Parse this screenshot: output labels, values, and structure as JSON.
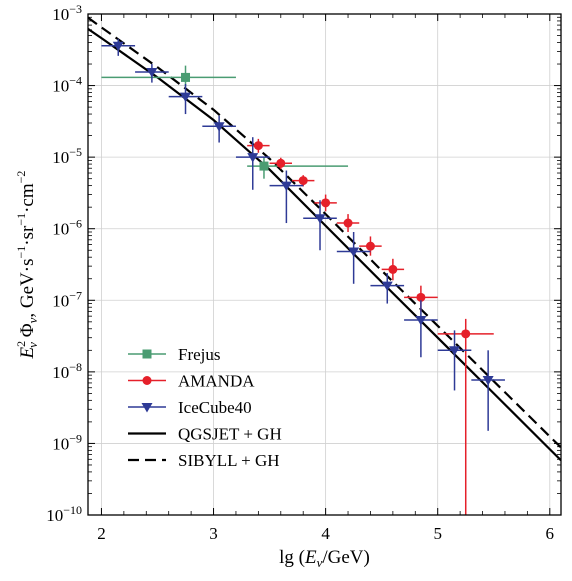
{
  "chart_data": {
    "type": "scatter",
    "xlabel": "lg (E_ν/GeV)",
    "ylabel": "E_ν² Φ_ν, GeV·s⁻¹·sr⁻¹·cm⁻²",
    "xlim": [
      1.88,
      6.1
    ],
    "ylim_log10": [
      -10,
      -3
    ],
    "y_scale": "log",
    "grid": true,
    "legend_position": "bottom-left",
    "x_ticks": [
      2,
      3,
      4,
      5,
      6
    ],
    "y_ticks_exponents": [
      -3,
      -4,
      -5,
      -6,
      -7,
      -8,
      -9,
      -10
    ],
    "y_tick_base": "10",
    "series": [
      {
        "name": "Frejus",
        "kind": "points",
        "marker": "square",
        "color": "#4a9c72",
        "points": [
          {
            "x": 2.75,
            "y": 0.00013,
            "xerr": [
              0.75,
              0.45
            ],
            "yerr": [
              9.8e-05,
              0.00019
            ]
          },
          {
            "x": 3.45,
            "y": 7.5e-06,
            "xerr": [
              0.15,
              0.75
            ],
            "yerr": [
              5e-06,
              1e-05
            ]
          }
        ]
      },
      {
        "name": "AMANDA",
        "kind": "points",
        "marker": "circle",
        "color": "#e5202a",
        "points": [
          {
            "x": 3.4,
            "y": 1.45e-05,
            "xerr": [
              0.1,
              0.1
            ],
            "yerr": [
              1.15e-05,
              1.8e-05
            ]
          },
          {
            "x": 3.6,
            "y": 8.2e-06,
            "xerr": [
              0.1,
              0.1
            ],
            "yerr": [
              6.8e-06,
              9.8e-06
            ]
          },
          {
            "x": 3.8,
            "y": 4.7e-06,
            "xerr": [
              0.1,
              0.1
            ],
            "yerr": [
              3.9e-06,
              5.6e-06
            ]
          },
          {
            "x": 4.0,
            "y": 2.3e-06,
            "xerr": [
              0.1,
              0.1
            ],
            "yerr": [
              1.75e-06,
              3e-06
            ]
          },
          {
            "x": 4.2,
            "y": 1.2e-06,
            "xerr": [
              0.1,
              0.1
            ],
            "yerr": [
              9e-07,
              1.6e-06
            ]
          },
          {
            "x": 4.4,
            "y": 5.7e-07,
            "xerr": [
              0.1,
              0.1
            ],
            "yerr": [
              4.2e-07,
              7.8e-07
            ]
          },
          {
            "x": 4.6,
            "y": 2.7e-07,
            "xerr": [
              0.1,
              0.1
            ],
            "yerr": [
              1.9e-07,
              3.8e-07
            ]
          },
          {
            "x": 4.85,
            "y": 1.1e-07,
            "xerr": [
              0.15,
              0.15
            ],
            "yerr": [
              7e-08,
              1.6e-07
            ]
          },
          {
            "x": 5.25,
            "y": 3.4e-08,
            "xerr": [
              0.25,
              0.25
            ],
            "yerr": [
              1e-10,
              5.5e-08
            ]
          }
        ]
      },
      {
        "name": "IceCube40",
        "kind": "points",
        "marker": "triangle-down",
        "color": "#2e3a96",
        "points": [
          {
            "x": 2.15,
            "y": 0.00036,
            "xerr": [
              0.15,
              0.15
            ],
            "yerr": [
              0.00026,
              0.00045
            ]
          },
          {
            "x": 2.45,
            "y": 0.000155,
            "xerr": [
              0.15,
              0.15
            ],
            "yerr": [
              0.00011,
              0.0002
            ]
          },
          {
            "x": 2.75,
            "y": 7e-05,
            "xerr": [
              0.15,
              0.15
            ],
            "yerr": [
              4e-05,
              0.000105
            ]
          },
          {
            "x": 3.05,
            "y": 2.7e-05,
            "xerr": [
              0.15,
              0.15
            ],
            "yerr": [
              1.6e-05,
              3.8e-05
            ]
          },
          {
            "x": 3.35,
            "y": 1e-05,
            "xerr": [
              0.15,
              0.15
            ],
            "yerr": [
              3.5e-06,
              1.9e-05
            ]
          },
          {
            "x": 3.65,
            "y": 4e-06,
            "xerr": [
              0.15,
              0.15
            ],
            "yerr": [
              1.2e-06,
              6.5e-06
            ]
          },
          {
            "x": 3.95,
            "y": 1.4e-06,
            "xerr": [
              0.15,
              0.15
            ],
            "yerr": [
              5e-07,
              2.5e-06
            ]
          },
          {
            "x": 4.25,
            "y": 4.8e-07,
            "xerr": [
              0.15,
              0.15
            ],
            "yerr": [
              1.7e-07,
              9e-07
            ]
          },
          {
            "x": 4.55,
            "y": 1.6e-07,
            "xerr": [
              0.15,
              0.15
            ],
            "yerr": [
              9e-08,
              2.4e-07
            ]
          },
          {
            "x": 4.85,
            "y": 5.3e-08,
            "xerr": [
              0.15,
              0.15
            ],
            "yerr": [
              1.6e-08,
              1e-07
            ]
          },
          {
            "x": 5.15,
            "y": 2e-08,
            "xerr": [
              0.15,
              0.15
            ],
            "yerr": [
              5.5e-09,
              3.8e-08
            ]
          },
          {
            "x": 5.45,
            "y": 7.7e-09,
            "xerr": [
              0.15,
              0.15
            ],
            "yerr": [
              1.5e-09,
              2e-08
            ]
          }
        ]
      },
      {
        "name": "QGSJET + GH",
        "kind": "line",
        "dash": "solid",
        "color": "#000000",
        "x": [
          1.88,
          2.0,
          2.5,
          3.0,
          3.5,
          4.0,
          4.5,
          5.0,
          5.5,
          6.0,
          6.1
        ],
        "y": [
          0.00062,
          0.00046,
          0.00013,
          3.3e-05,
          6.7e-06,
          1.1e-06,
          1.8e-07,
          3e-08,
          5e-09,
          8.3e-10,
          5.8e-10
        ]
      },
      {
        "name": "SIBYLL + GH",
        "kind": "line",
        "dash": "dashed",
        "color": "#000000",
        "x": [
          1.88,
          2.0,
          2.5,
          3.0,
          3.5,
          4.0,
          4.5,
          5.0,
          5.5,
          6.0,
          6.1
        ],
        "y": [
          0.00089,
          0.00065,
          0.00018,
          4.6e-05,
          9.5e-06,
          1.6e-06,
          2.6e-07,
          4.4e-08,
          7.4e-09,
          1.25e-09,
          8.8e-10
        ]
      }
    ]
  }
}
